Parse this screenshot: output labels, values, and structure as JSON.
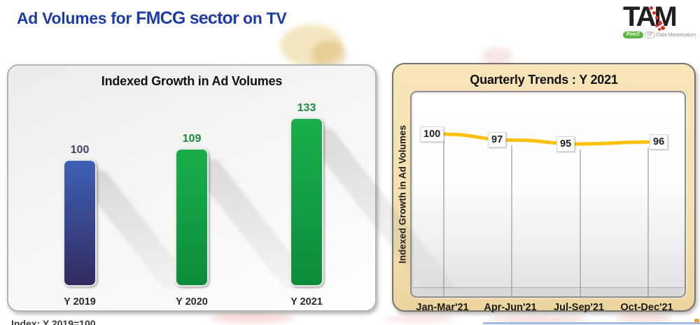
{
  "header": {
    "title_pre": "Ad Volumes for ",
    "title_strong": "FMCG sector",
    "title_post": " on TV"
  },
  "logo": {
    "name": "TAM",
    "pill": "PoinT",
    "of": "OF",
    "tagline": "Data Monetisation"
  },
  "footnote": {
    "text": "Index: Y 2019=100"
  },
  "chart_data": [
    {
      "type": "bar",
      "title": "Indexed Growth in Ad Volumes",
      "categories": [
        "Y 2019",
        "Y 2020",
        "Y 2021"
      ],
      "values": [
        100,
        109,
        133
      ],
      "ylim": [
        0,
        150
      ],
      "grid": false,
      "bar_gradients": [
        [
          "#3F60B5",
          "#312B60"
        ],
        [
          "#1BAE4D",
          "#0C8C3A"
        ],
        [
          "#1BAE4D",
          "#0C8C3A"
        ]
      ],
      "label_colors": [
        "#45406E",
        "#1E8A3C",
        "#1E8A3C"
      ]
    },
    {
      "type": "line",
      "title": "Quarterly Trends : Y 2021",
      "ylabel": "Indexed Growth in Ad Volumes",
      "categories": [
        "Jan-Mar'21",
        "Apr-Jun'21",
        "Jul-Sep'21",
        "Oct-Dec'21"
      ],
      "values": [
        100,
        97,
        95,
        96
      ],
      "ylim": [
        85,
        105
      ],
      "grid": "vertical-droplines",
      "line_color": "#FFC010",
      "panel_color": "#F5E1B3",
      "legend": "none"
    }
  ]
}
